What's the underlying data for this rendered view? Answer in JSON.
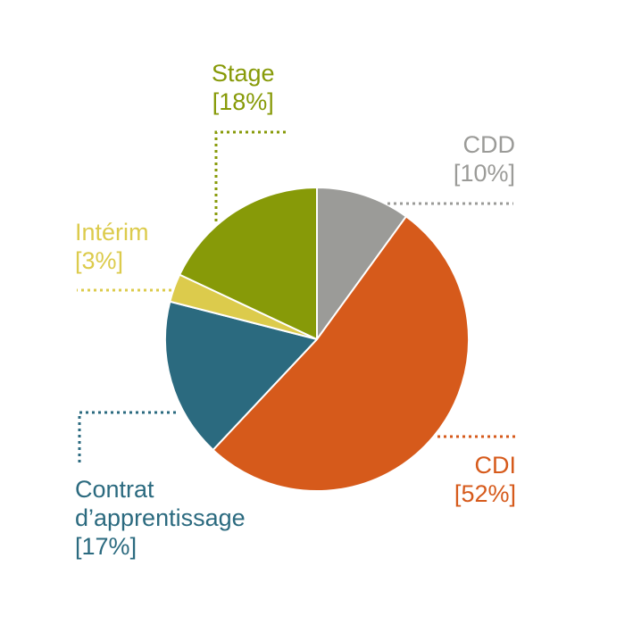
{
  "chart_data": {
    "type": "pie",
    "slices": [
      {
        "key": "cdd",
        "name": "CDD",
        "value": 10,
        "percent_label": "10%",
        "color": "#9b9b98"
      },
      {
        "key": "cdi",
        "name": "CDI",
        "value": 52,
        "percent_label": "52%",
        "color": "#d65a1b"
      },
      {
        "key": "contrat",
        "name": "Contrat d’apprentissage",
        "name_lines": [
          "Contrat",
          "d’apprentissage"
        ],
        "value": 17,
        "percent_label": "17%",
        "color": "#2b6a7f"
      },
      {
        "key": "interim",
        "name": "Intérim",
        "value": 3,
        "percent_label": "3%",
        "color": "#dccb4c"
      },
      {
        "key": "stage",
        "name": "Stage",
        "value": 18,
        "percent_label": "18%",
        "color": "#879a08"
      }
    ],
    "start_angle": "12 o'clock",
    "direction": "clockwise",
    "labels": "outside with dotted leader lines",
    "legend": "none"
  }
}
